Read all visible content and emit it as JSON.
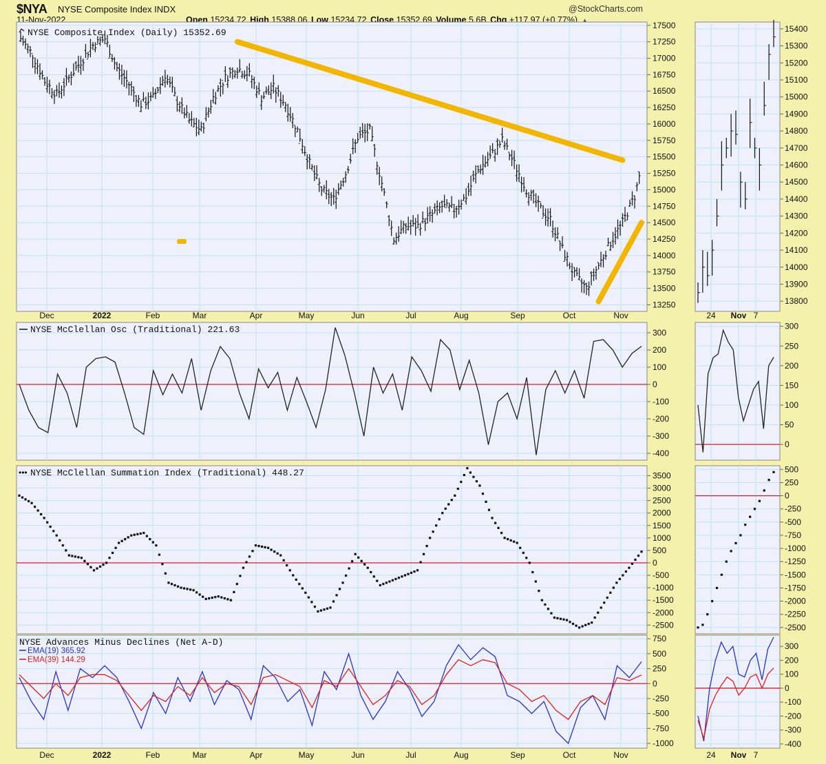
{
  "header": {
    "symbol": "$NYA",
    "name": "NYSE Composite Index INDX",
    "date": "11-Nov-2022",
    "watermark": "@StockCharts.com",
    "open_label": "Open",
    "open": "15234.72",
    "high_label": "High",
    "high": "15388.06",
    "low_label": "Low",
    "low": "15234.72",
    "close_label": "Close",
    "close": "15352.69",
    "volume_label": "Volume",
    "volume": "5.6B",
    "chg_label": "Chg",
    "chg": "+117.97 (+0.77%)",
    "chg_arrow": "▲"
  },
  "colors": {
    "background": "#f3f1ab",
    "panel": "#eef0fb",
    "grid": "#bfe3f2",
    "price": "#111111",
    "trend": "#f2b600",
    "zero": "#d02030",
    "ema19": "#2a32c8",
    "ema39": "#e02020",
    "points": "#111111"
  },
  "x_axis": {
    "months": [
      "Dec",
      "2022",
      "Feb",
      "Mar",
      "Apr",
      "May",
      "Jun",
      "Jul",
      "Aug",
      "Sep",
      "Oct",
      "Nov"
    ],
    "zoom_labels": [
      "24",
      "Nov",
      "7"
    ]
  },
  "chart_data": [
    {
      "id": "price",
      "type": "ohlc",
      "title": "NYSE Composite Index (Daily) 15352.69",
      "yticks": [
        17500,
        17250,
        17000,
        16750,
        16500,
        16250,
        16000,
        15750,
        15500,
        15250,
        15000,
        14750,
        14500,
        14250,
        14000,
        13750,
        13500,
        13250
      ],
      "ylim": [
        13150,
        17550
      ],
      "x": [
        "2021-11-15",
        "2021-11-22",
        "2021-11-29",
        "2021-12-06",
        "2021-12-13",
        "2021-12-20",
        "2021-12-27",
        "2022-01-03",
        "2022-01-10",
        "2022-01-17",
        "2022-01-24",
        "2022-01-31",
        "2022-02-07",
        "2022-02-14",
        "2022-02-21",
        "2022-02-28",
        "2022-03-07",
        "2022-03-14",
        "2022-03-21",
        "2022-03-28",
        "2022-04-04",
        "2022-04-11",
        "2022-04-18",
        "2022-04-25",
        "2022-05-02",
        "2022-05-09",
        "2022-05-16",
        "2022-05-23",
        "2022-05-30",
        "2022-06-06",
        "2022-06-13",
        "2022-06-20",
        "2022-06-27",
        "2022-07-04",
        "2022-07-11",
        "2022-07-18",
        "2022-07-25",
        "2022-08-01",
        "2022-08-08",
        "2022-08-15",
        "2022-08-22",
        "2022-08-29",
        "2022-09-05",
        "2022-09-12",
        "2022-09-19",
        "2022-09-26",
        "2022-10-03",
        "2022-10-10",
        "2022-10-17",
        "2022-10-24",
        "2022-10-31",
        "2022-11-07",
        "2022-11-11"
      ],
      "values": [
        17300,
        17050,
        16650,
        16450,
        16700,
        16950,
        17200,
        17300,
        16850,
        16600,
        16300,
        16400,
        16750,
        16350,
        16050,
        15900,
        16400,
        16700,
        16850,
        16750,
        16400,
        16550,
        16300,
        15900,
        15400,
        15000,
        14850,
        15250,
        15800,
        15900,
        15100,
        14250,
        14450,
        14450,
        14600,
        14750,
        14700,
        14900,
        15300,
        15500,
        15750,
        15400,
        15000,
        14750,
        14550,
        14100,
        13700,
        13500,
        13850,
        14200,
        14500,
        14900,
        15352.69
      ],
      "trendlines": [
        {
          "from": [
            "2022-03-21",
            17250
          ],
          "to": [
            "2022-10-31",
            15450
          ]
        },
        {
          "from": [
            "2022-10-17",
            13300
          ],
          "to": [
            "2022-11-11",
            14500
          ]
        }
      ],
      "zoom_yticks": [
        15400,
        15300,
        15200,
        15100,
        15000,
        14900,
        14800,
        14700,
        14600,
        14500,
        14400,
        14300,
        14200,
        14100,
        14000,
        13900,
        13800
      ],
      "zoom_ylim": [
        13740,
        15440
      ],
      "zoom_values": [
        13850,
        14000,
        13950,
        14100,
        14300,
        14600,
        14700,
        14800,
        14780,
        14500,
        14400,
        14850,
        14700,
        14600,
        14950,
        15250,
        15352.69
      ]
    },
    {
      "id": "osc",
      "type": "line",
      "title": "NYSE McClellan Osc (Traditional) 221.63",
      "yticks": [
        300,
        200,
        100,
        0,
        -100,
        -200,
        -300,
        -400
      ],
      "ylim": [
        -440,
        360
      ],
      "zero": 0,
      "values": [
        0,
        -150,
        -250,
        -280,
        60,
        -50,
        -250,
        100,
        150,
        160,
        130,
        -50,
        -250,
        -290,
        80,
        -60,
        60,
        -50,
        150,
        -150,
        80,
        220,
        150,
        -50,
        -200,
        90,
        -20,
        70,
        -150,
        40,
        -100,
        -250,
        -30,
        330,
        170,
        -50,
        -300,
        100,
        -50,
        60,
        -150,
        160,
        80,
        -40,
        260,
        200,
        -30,
        140,
        -50,
        -350,
        -100,
        -50,
        -200,
        40,
        -410,
        -30,
        80,
        -50,
        80,
        -80,
        250,
        260,
        200,
        100,
        180,
        221.63
      ],
      "zoom_yticks": [
        300,
        250,
        200,
        150,
        100,
        50,
        0
      ],
      "zoom_ylim": [
        -40,
        310
      ],
      "zoom_values": [
        100,
        -20,
        180,
        220,
        230,
        290,
        260,
        240,
        120,
        60,
        100,
        140,
        160,
        40,
        200,
        221.63
      ]
    },
    {
      "id": "sum",
      "type": "scatter",
      "title": "NYSE McClellan Summation Index (Traditional) 448.27",
      "yticks": [
        3500,
        3000,
        2500,
        2000,
        1500,
        1000,
        500,
        0,
        -500,
        -1000,
        -1500,
        -2000,
        -2500
      ],
      "ylim": [
        -2850,
        3900
      ],
      "zero": 0,
      "values": [
        2700,
        2400,
        1800,
        1100,
        300,
        200,
        -300,
        0,
        800,
        1100,
        1200,
        700,
        -800,
        -1000,
        -1100,
        -1450,
        -1350,
        -1500,
        -200,
        700,
        600,
        300,
        -500,
        -1200,
        -1950,
        -1800,
        -800,
        350,
        -200,
        -900,
        -700,
        -500,
        -300,
        1000,
        2000,
        2700,
        3800,
        3100,
        1800,
        1000,
        800,
        0,
        -1500,
        -2200,
        -2300,
        -2600,
        -2400,
        -1600,
        -800,
        -200,
        448.27
      ],
      "zoom_yticks": [
        500,
        250,
        0,
        -250,
        -500,
        -750,
        -1000,
        -1250,
        -1500,
        -1750,
        -2000,
        -2250,
        -2500
      ],
      "zoom_ylim": [
        -2620,
        570
      ],
      "zoom_values": [
        -2500,
        -2450,
        -2250,
        -2000,
        -1750,
        -1500,
        -1250,
        -1050,
        -900,
        -750,
        -550,
        -400,
        -250,
        -100,
        100,
        300,
        448.27
      ]
    },
    {
      "id": "ad",
      "type": "line",
      "title": "NYSE Advances Minus Declines (Net A-D)",
      "yticks": [
        750,
        500,
        250,
        0,
        -250,
        -500,
        -750,
        -1000
      ],
      "ylim": [
        -1080,
        810
      ],
      "zero": 0,
      "series": [
        {
          "name": "EMA(19) 365.92",
          "color": "#2a32c8",
          "values": [
            100,
            -300,
            -600,
            200,
            -450,
            250,
            100,
            300,
            100,
            -300,
            -750,
            -150,
            -500,
            100,
            -300,
            200,
            -350,
            50,
            -100,
            -600,
            300,
            100,
            -300,
            -100,
            -700,
            200,
            -100,
            500,
            -200,
            -600,
            -300,
            200,
            -100,
            -550,
            -300,
            300,
            650,
            400,
            600,
            450,
            -200,
            -300,
            -500,
            -300,
            -800,
            -1000,
            -400,
            -200,
            -600,
            300,
            100,
            365.92
          ]
        },
        {
          "name": "EMA(39) 144.29",
          "color": "#e02020",
          "values": [
            150,
            -50,
            -250,
            0,
            -200,
            100,
            150,
            150,
            50,
            -200,
            -450,
            -200,
            -300,
            -50,
            -200,
            100,
            -150,
            0,
            -50,
            -350,
            100,
            150,
            50,
            -50,
            -400,
            50,
            -50,
            250,
            -50,
            -350,
            -200,
            50,
            -50,
            -350,
            -200,
            150,
            400,
            300,
            400,
            350,
            0,
            -100,
            -300,
            -200,
            -450,
            -600,
            -300,
            -200,
            -350,
            100,
            50,
            144.29
          ]
        }
      ],
      "zoom_yticks": [
        300,
        200,
        100,
        0,
        -100,
        -200,
        -300,
        -400
      ],
      "zoom_ylim": [
        -430,
        380
      ],
      "zoom_series": [
        {
          "name": "EMA(19)",
          "values": [
            -200,
            -380,
            0,
            200,
            330,
            250,
            300,
            100,
            80,
            200,
            250,
            60,
            280,
            365.92
          ]
        },
        {
          "name": "EMA(39)",
          "values": [
            -230,
            -360,
            -150,
            -50,
            20,
            80,
            50,
            -50,
            0,
            80,
            100,
            0,
            100,
            144.29
          ]
        }
      ]
    }
  ]
}
